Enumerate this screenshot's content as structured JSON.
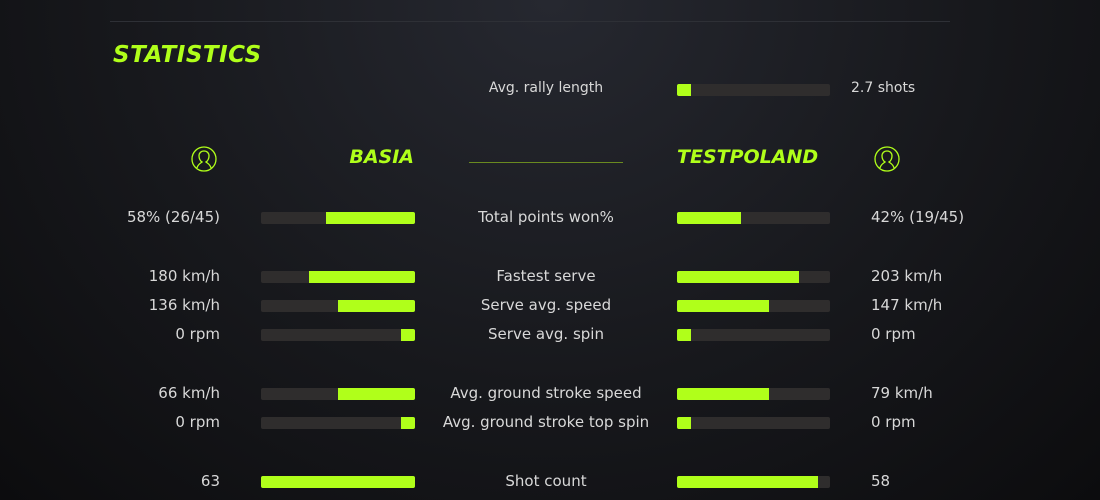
{
  "colors": {
    "accent": "#b0ff1a",
    "bar_track": "#2f2d2d"
  },
  "title": "STATISTICS",
  "rally": {
    "label": "Avg. rally length",
    "value": "2.7 shots",
    "fraction": 0.09
  },
  "players": {
    "left": {
      "name": "BASIA",
      "icon": "user-circle-icon"
    },
    "right": {
      "name": "TESTPOLAND",
      "icon": "user-circle-icon"
    }
  },
  "stats": [
    {
      "label": "Total points won%",
      "left": "58% (26/45)",
      "right": "42% (19/45)",
      "left_fraction": 0.58,
      "right_fraction": 0.42
    },
    {
      "label": "Fastest serve",
      "left": "180 km/h",
      "right": "203 km/h",
      "left_fraction": 0.69,
      "right_fraction": 0.8
    },
    {
      "label": "Serve avg. speed",
      "left": "136 km/h",
      "right": "147 km/h",
      "left_fraction": 0.5,
      "right_fraction": 0.6
    },
    {
      "label": "Serve avg. spin",
      "left": "0 rpm",
      "right": "0 rpm",
      "left_fraction": 0.09,
      "right_fraction": 0.09
    },
    {
      "label": "Avg. ground stroke speed",
      "left": "66 km/h",
      "right": "79 km/h",
      "left_fraction": 0.5,
      "right_fraction": 0.6
    },
    {
      "label": "Avg. ground stroke top spin",
      "left": "0 rpm",
      "right": "0 rpm",
      "left_fraction": 0.09,
      "right_fraction": 0.09
    },
    {
      "label": "Shot count",
      "left": "63",
      "right": "58",
      "left_fraction": 1.0,
      "right_fraction": 0.92
    }
  ]
}
